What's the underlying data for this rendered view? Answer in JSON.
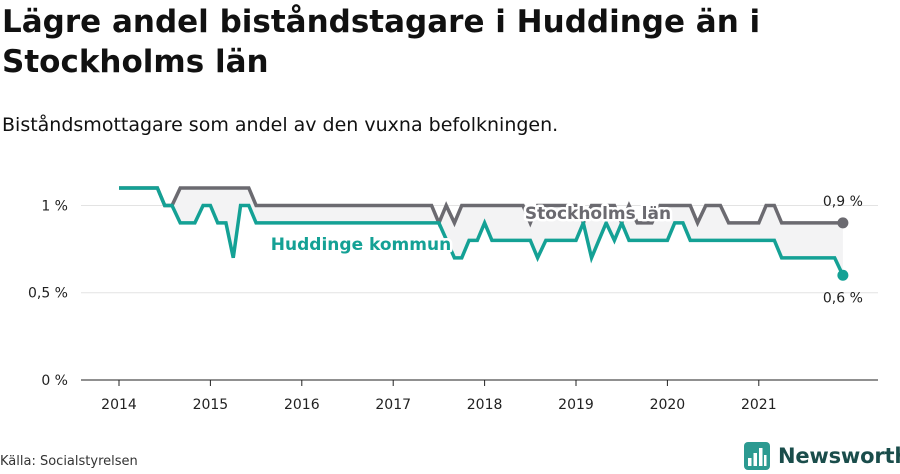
{
  "title": "Lägre andel biståndstagare i Huddinge än i Stockholms län",
  "subtitle": "Biståndsmottagare som andel av den vuxna befolkningen.",
  "source": "Källa: Socialstyrelsen",
  "brand": {
    "name": "Newsworthy",
    "icon": "newsworthy-bar-chart-icon",
    "color": "#1a4d4b"
  },
  "chart_data": {
    "type": "line",
    "xlabel": "",
    "ylabel": "",
    "xlim": [
      2013.85,
      2022.15
    ],
    "ylim": [
      0,
      1.1
    ],
    "y_ticks": [
      {
        "value": 0,
        "label": "0 %"
      },
      {
        "value": 0.5,
        "label": "0,5 %"
      },
      {
        "value": 1,
        "label": "1 %"
      }
    ],
    "x_ticks": [
      {
        "value": 2014,
        "label": "2014"
      },
      {
        "value": 2015,
        "label": "2015"
      },
      {
        "value": 2016,
        "label": "2016"
      },
      {
        "value": 2017,
        "label": "2017"
      },
      {
        "value": 2018,
        "label": "2018"
      },
      {
        "value": 2019,
        "label": "2019"
      },
      {
        "value": 2020,
        "label": "2020"
      },
      {
        "value": 2021,
        "label": "2021"
      }
    ],
    "grid": true,
    "series": [
      {
        "name": "Stockholms län",
        "color": "#6b6a70",
        "x": [
          2014.0,
          2014.42,
          2014.5,
          2014.58,
          2014.67,
          2015.0,
          2015.33,
          2015.42,
          2015.5,
          2016.0,
          2016.5,
          2016.67,
          2016.92,
          2017.0,
          2017.25,
          2017.42,
          2017.5,
          2017.58,
          2017.67,
          2017.75,
          2018.0,
          2018.25,
          2018.42,
          2018.5,
          2018.58,
          2018.67,
          2019.0,
          2019.08,
          2019.17,
          2019.25,
          2019.33,
          2019.42,
          2019.5,
          2019.58,
          2019.67,
          2019.83,
          2019.92,
          2020.0,
          2020.25,
          2020.33,
          2020.42,
          2020.58,
          2020.67,
          2020.83,
          2021.0,
          2021.08,
          2021.17,
          2021.25,
          2021.5,
          2021.75,
          2021.92
        ],
        "values": [
          1.1,
          1.1,
          1.0,
          1.0,
          1.1,
          1.1,
          1.1,
          1.1,
          1.0,
          1.0,
          1.0,
          1.0,
          1.0,
          1.0,
          1.0,
          1.0,
          0.9,
          1.0,
          0.9,
          1.0,
          1.0,
          1.0,
          1.0,
          0.9,
          1.0,
          1.0,
          1.0,
          0.9,
          1.0,
          1.0,
          1.0,
          1.0,
          0.9,
          1.0,
          0.9,
          0.9,
          1.0,
          1.0,
          1.0,
          0.9,
          1.0,
          1.0,
          0.9,
          0.9,
          0.9,
          1.0,
          1.0,
          0.9,
          0.9,
          0.9,
          0.9
        ],
        "end_label": "0,9 %"
      },
      {
        "name": "Huddinge kommun",
        "color": "#14a195",
        "x": [
          2014.0,
          2014.42,
          2014.5,
          2014.58,
          2014.67,
          2014.83,
          2014.92,
          2015.0,
          2015.08,
          2015.17,
          2015.25,
          2015.33,
          2015.42,
          2015.5,
          2016.0,
          2016.5,
          2016.92,
          2017.0,
          2017.5,
          2017.67,
          2017.75,
          2017.83,
          2017.92,
          2018.0,
          2018.08,
          2018.17,
          2018.5,
          2018.58,
          2018.67,
          2018.83,
          2018.92,
          2019.0,
          2019.08,
          2019.17,
          2019.25,
          2019.33,
          2019.42,
          2019.5,
          2019.58,
          2019.67,
          2019.83,
          2019.92,
          2020.0,
          2020.08,
          2020.17,
          2020.25,
          2020.5,
          2020.75,
          2021.0,
          2021.17,
          2021.25,
          2021.5,
          2021.75,
          2021.83,
          2021.92
        ],
        "values": [
          1.1,
          1.1,
          1.0,
          1.0,
          0.9,
          0.9,
          1.0,
          1.0,
          0.9,
          0.9,
          0.7,
          1.0,
          1.0,
          0.9,
          0.9,
          0.9,
          0.9,
          0.9,
          0.9,
          0.7,
          0.7,
          0.8,
          0.8,
          0.9,
          0.8,
          0.8,
          0.8,
          0.7,
          0.8,
          0.8,
          0.8,
          0.8,
          0.9,
          0.7,
          0.8,
          0.9,
          0.8,
          0.9,
          0.8,
          0.8,
          0.8,
          0.8,
          0.8,
          0.9,
          0.9,
          0.8,
          0.8,
          0.8,
          0.8,
          0.8,
          0.7,
          0.7,
          0.7,
          0.7,
          0.6
        ],
        "end_label": "0,6 %"
      }
    ]
  }
}
